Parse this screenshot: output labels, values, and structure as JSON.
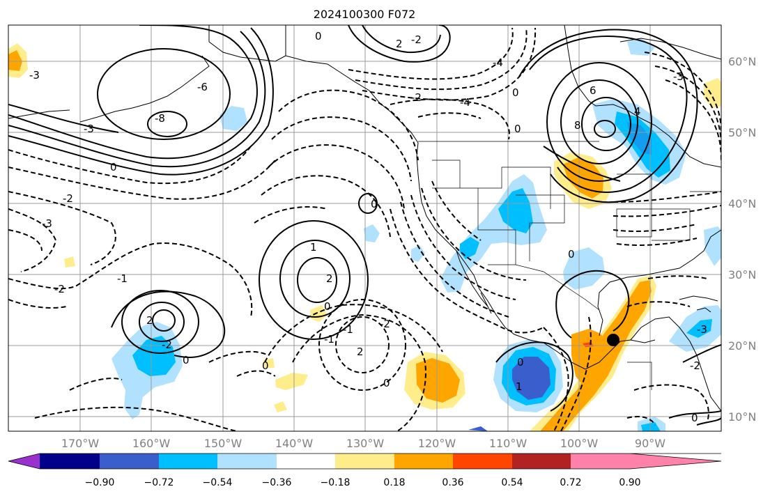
{
  "title": "2024100300 F072",
  "lat_labels": [
    "60°N",
    "50°N",
    "40°N",
    "30°N",
    "20°N",
    "10°N"
  ],
  "lon_labels": [
    "170°W",
    "160°W",
    "150°W",
    "140°W",
    "130°W",
    "120°W",
    "110°W",
    "100°W",
    "90°W"
  ],
  "colorbar": {
    "tick_labels": [
      "−0.90",
      "−0.72",
      "−0.54",
      "−0.36",
      "−0.18",
      "0.18",
      "0.36",
      "0.54",
      "0.72",
      "0.90"
    ],
    "colors": [
      "#9932cc",
      "#00008b",
      "#3a5fcd",
      "#00bfff",
      "#b0e2ff",
      "#ffffff",
      "#ffec8b",
      "#ffa500",
      "#ff4500",
      "#b22222",
      "#ff82ab"
    ]
  },
  "contour_labels": [
    {
      "text": "0"
    },
    {
      "text": "-4"
    },
    {
      "text": "-6"
    },
    {
      "text": "-8"
    },
    {
      "text": "-3"
    },
    {
      "text": "0"
    },
    {
      "text": "-2"
    },
    {
      "text": "-3"
    },
    {
      "text": "-2"
    },
    {
      "text": "-1"
    },
    {
      "text": "2"
    },
    {
      "text": "-2"
    },
    {
      "text": "0"
    },
    {
      "text": "1"
    },
    {
      "text": "2"
    },
    {
      "text": "0"
    },
    {
      "text": "0"
    },
    {
      "text": "-2"
    },
    {
      "text": "-1"
    },
    {
      "text": "2"
    },
    {
      "text": "-2"
    },
    {
      "text": "2"
    },
    {
      "text": "-4"
    },
    {
      "text": "-2"
    },
    {
      "text": "0"
    },
    {
      "text": "6"
    },
    {
      "text": "8"
    },
    {
      "text": "4"
    },
    {
      "text": "0"
    },
    {
      "text": "0"
    },
    {
      "text": "-3"
    },
    {
      "text": "-3"
    },
    {
      "text": "0"
    },
    {
      "text": "1"
    },
    {
      "text": "0"
    },
    {
      "text": "-2"
    },
    {
      "text": "-3"
    },
    {
      "text": "0"
    },
    {
      "text": "0"
    },
    {
      "text": "-1"
    }
  ],
  "marker": {
    "label": "station-marker"
  }
}
